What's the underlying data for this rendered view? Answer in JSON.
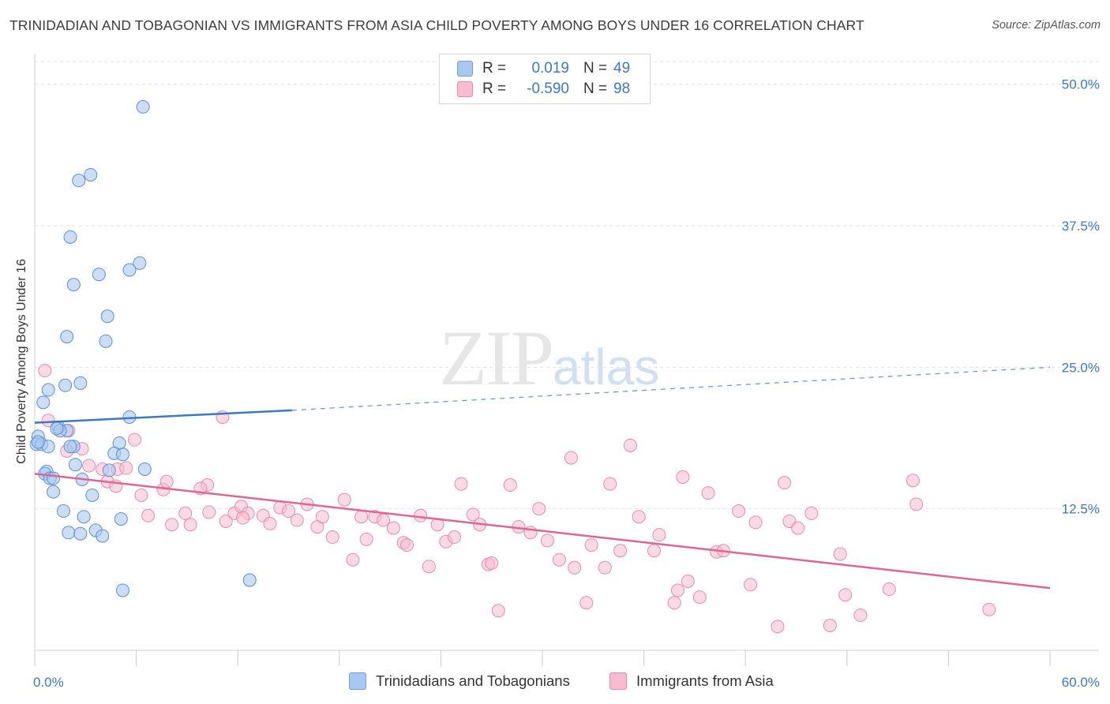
{
  "title": "TRINIDADIAN AND TOBAGONIAN VS IMMIGRANTS FROM ASIA CHILD POVERTY AMONG BOYS UNDER 16 CORRELATION CHART",
  "source": "Source: ZipAtlas.com",
  "watermark": {
    "zip": "ZIP",
    "atlas": "atlas"
  },
  "legend": {
    "rows": [
      {
        "r_label": "R =",
        "r_value": "0.019",
        "n_label": "N =",
        "n_value": "49",
        "color": "#a9c8ef",
        "stroke": "#6f9fd8"
      },
      {
        "r_label": "R =",
        "r_value": "-0.590",
        "n_label": "N =",
        "n_value": "98",
        "color": "#f7bcd0",
        "stroke": "#e98aaa"
      }
    ]
  },
  "bottom_legend": [
    "Trinidadians and Tobagonians",
    "Immigrants from Asia"
  ],
  "colors": {
    "blue_fill": "#a9c8ef",
    "blue_stroke": "#5b8fd6",
    "blue_line": "#3a78c9",
    "pink_fill": "#f7bcd0",
    "pink_stroke": "#e98aaa",
    "pink_line": "#e0658f",
    "tick_text": "#3a78c9",
    "grid": "#e2e2e2"
  },
  "chart_data": {
    "type": "scatter",
    "title": "TRINIDADIAN AND TOBAGONIAN VS IMMIGRANTS FROM ASIA CHILD POVERTY AMONG BOYS UNDER 16 CORRELATION CHART",
    "xlabel": "",
    "ylabel": "Child Poverty Among Boys Under 16",
    "xlim": [
      0,
      60
    ],
    "ylim": [
      0,
      52
    ],
    "x_tick_labels": [
      "0.0%",
      "60.0%"
    ],
    "y_ticks": [
      12.5,
      25.0,
      37.5,
      50.0
    ],
    "y_tick_labels": [
      "12.5%",
      "25.0%",
      "37.5%",
      "50.0%"
    ],
    "grid": true,
    "legend_placement": "top-center",
    "series": [
      {
        "name": "Trinidadians and Tobagonians",
        "r": 0.019,
        "n": 49,
        "trend": {
          "x0": 0,
          "y0": 20.1,
          "x1": 15.2,
          "y1": 21.2,
          "dashed_to_x": 60,
          "dashed_to_y": 25.0
        },
        "points": [
          [
            6.4,
            48.0
          ],
          [
            3.3,
            42.0
          ],
          [
            2.6,
            41.5
          ],
          [
            2.1,
            36.5
          ],
          [
            6.2,
            34.2
          ],
          [
            5.6,
            33.6
          ],
          [
            3.8,
            33.2
          ],
          [
            2.3,
            32.3
          ],
          [
            4.3,
            29.5
          ],
          [
            1.9,
            27.7
          ],
          [
            4.2,
            27.3
          ],
          [
            2.7,
            23.6
          ],
          [
            1.8,
            23.4
          ],
          [
            0.8,
            23.0
          ],
          [
            0.5,
            21.9
          ],
          [
            5.6,
            20.6
          ],
          [
            1.4,
            19.7
          ],
          [
            1.9,
            19.4
          ],
          [
            1.5,
            19.4
          ],
          [
            0.2,
            18.9
          ],
          [
            0.1,
            18.2
          ],
          [
            0.4,
            18.2
          ],
          [
            0.8,
            18.0
          ],
          [
            2.3,
            18.0
          ],
          [
            2.1,
            18.0
          ],
          [
            5.0,
            18.3
          ],
          [
            4.7,
            17.4
          ],
          [
            5.2,
            17.3
          ],
          [
            2.4,
            16.4
          ],
          [
            6.5,
            16.0
          ],
          [
            4.4,
            15.9
          ],
          [
            0.7,
            15.8
          ],
          [
            0.6,
            15.6
          ],
          [
            0.9,
            15.2
          ],
          [
            1.1,
            15.2
          ],
          [
            2.8,
            15.1
          ],
          [
            1.1,
            14.0
          ],
          [
            3.4,
            13.7
          ],
          [
            1.7,
            12.3
          ],
          [
            2.9,
            11.8
          ],
          [
            5.1,
            11.6
          ],
          [
            2.0,
            10.4
          ],
          [
            3.6,
            10.6
          ],
          [
            2.7,
            10.3
          ],
          [
            4.0,
            10.1
          ],
          [
            12.7,
            6.2
          ],
          [
            5.2,
            5.3
          ],
          [
            0.2,
            18.4
          ],
          [
            1.3,
            19.6
          ]
        ]
      },
      {
        "name": "Immigrants from Asia",
        "r": -0.59,
        "n": 98,
        "trend": {
          "x0": 0,
          "y0": 15.6,
          "x1": 60,
          "y1": 5.5
        },
        "points": [
          [
            0.6,
            24.7
          ],
          [
            0.8,
            20.3
          ],
          [
            2.0,
            19.4
          ],
          [
            1.9,
            17.6
          ],
          [
            2.8,
            17.8
          ],
          [
            11.1,
            20.6
          ],
          [
            5.9,
            18.6
          ],
          [
            4.3,
            14.9
          ],
          [
            3.2,
            16.3
          ],
          [
            4.9,
            16.0
          ],
          [
            4.0,
            16.0
          ],
          [
            5.4,
            16.1
          ],
          [
            4.8,
            14.5
          ],
          [
            6.3,
            13.7
          ],
          [
            7.6,
            14.2
          ],
          [
            7.8,
            14.9
          ],
          [
            10.2,
            14.6
          ],
          [
            6.7,
            11.9
          ],
          [
            8.1,
            11.1
          ],
          [
            8.9,
            12.1
          ],
          [
            9.2,
            11.1
          ],
          [
            10.3,
            12.2
          ],
          [
            11.3,
            11.4
          ],
          [
            11.8,
            12.1
          ],
          [
            12.2,
            12.7
          ],
          [
            12.6,
            12.1
          ],
          [
            13.5,
            11.9
          ],
          [
            13.9,
            11.2
          ],
          [
            14.5,
            12.6
          ],
          [
            15.0,
            12.3
          ],
          [
            15.5,
            11.5
          ],
          [
            16.1,
            12.9
          ],
          [
            16.7,
            10.9
          ],
          [
            17.0,
            11.8
          ],
          [
            17.6,
            10.0
          ],
          [
            18.3,
            13.3
          ],
          [
            18.8,
            8.0
          ],
          [
            19.3,
            11.8
          ],
          [
            19.6,
            9.8
          ],
          [
            20.1,
            11.8
          ],
          [
            20.6,
            11.5
          ],
          [
            21.2,
            10.8
          ],
          [
            21.8,
            9.5
          ],
          [
            22.0,
            9.3
          ],
          [
            22.8,
            11.9
          ],
          [
            23.3,
            7.4
          ],
          [
            23.8,
            11.1
          ],
          [
            24.3,
            9.6
          ],
          [
            24.8,
            10.0
          ],
          [
            25.2,
            14.7
          ],
          [
            25.9,
            12.0
          ],
          [
            26.3,
            11.1
          ],
          [
            26.8,
            7.6
          ],
          [
            27.0,
            7.7
          ],
          [
            27.4,
            3.5
          ],
          [
            28.1,
            14.6
          ],
          [
            28.6,
            10.9
          ],
          [
            29.3,
            10.4
          ],
          [
            29.8,
            12.5
          ],
          [
            30.3,
            9.7
          ],
          [
            31.0,
            8.0
          ],
          [
            31.7,
            17.0
          ],
          [
            31.9,
            7.3
          ],
          [
            32.6,
            4.2
          ],
          [
            32.9,
            9.3
          ],
          [
            33.7,
            7.3
          ],
          [
            34.0,
            14.7
          ],
          [
            34.6,
            8.8
          ],
          [
            35.2,
            18.1
          ],
          [
            35.7,
            11.8
          ],
          [
            36.6,
            8.8
          ],
          [
            36.9,
            10.2
          ],
          [
            37.8,
            4.2
          ],
          [
            38.0,
            5.3
          ],
          [
            38.3,
            15.3
          ],
          [
            38.6,
            6.1
          ],
          [
            39.3,
            4.7
          ],
          [
            39.8,
            13.9
          ],
          [
            40.3,
            8.7
          ],
          [
            40.7,
            8.8
          ],
          [
            41.6,
            12.3
          ],
          [
            42.3,
            5.8
          ],
          [
            42.6,
            11.3
          ],
          [
            43.9,
            2.1
          ],
          [
            44.3,
            14.8
          ],
          [
            44.6,
            11.4
          ],
          [
            45.1,
            10.8
          ],
          [
            45.9,
            12.1
          ],
          [
            47.0,
            2.2
          ],
          [
            47.6,
            8.5
          ],
          [
            47.9,
            4.9
          ],
          [
            48.8,
            3.1
          ],
          [
            50.5,
            5.4
          ],
          [
            51.9,
            15.0
          ],
          [
            52.1,
            12.9
          ],
          [
            56.4,
            3.6
          ],
          [
            12.3,
            11.7
          ],
          [
            9.8,
            14.3
          ]
        ]
      }
    ]
  }
}
